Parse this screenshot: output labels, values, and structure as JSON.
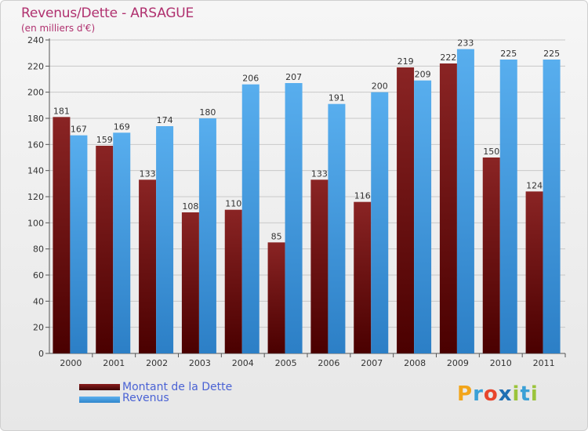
{
  "title": "Revenus/Dette - ARSAGUE",
  "subtitle": "(en milliers d'€)",
  "logo": {
    "letters": [
      "P",
      "r",
      "o",
      "x",
      "i",
      "t",
      "i"
    ],
    "colors": [
      "#f2a51a",
      "#3aa0d6",
      "#e8452c",
      "#1f6fb3",
      "#9bc43b",
      "#3aa0d6",
      "#9bc43b"
    ]
  },
  "chart_data": {
    "type": "bar",
    "categories": [
      "2000",
      "2001",
      "2002",
      "2003",
      "2004",
      "2005",
      "2006",
      "2007",
      "2008",
      "2009",
      "2010",
      "2011"
    ],
    "series": [
      {
        "name": "Montant de la Dette",
        "color": "#7a1818",
        "values": [
          181,
          159,
          133,
          108,
          110,
          85,
          133,
          116,
          219,
          222,
          150,
          124
        ]
      },
      {
        "name": "Revenus",
        "color": "#4aa3e8",
        "values": [
          167,
          169,
          174,
          180,
          206,
          207,
          191,
          200,
          209,
          233,
          225,
          225
        ]
      }
    ],
    "ylim": [
      0,
      240
    ],
    "yticks": [
      0,
      20,
      40,
      60,
      80,
      100,
      120,
      140,
      160,
      180,
      200,
      220,
      240
    ],
    "grid": true,
    "legend": "bottom-left"
  }
}
